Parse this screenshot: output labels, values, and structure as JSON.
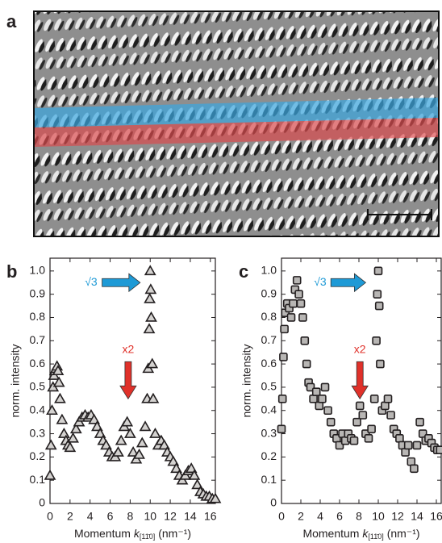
{
  "image_panel": {
    "label": "a"
  },
  "chart_data": [
    {
      "type": "scatter",
      "label": "b",
      "marker": "triangle",
      "color": "#231f20",
      "fill": "#d4d2d0",
      "ylabel": "norm. intensity",
      "xlabel": {
        "text": "Momentum",
        "symbol": "k",
        "subscript": "[11̄0]",
        "unit": "(nm⁻¹)"
      },
      "xlim": [
        0,
        16.5
      ],
      "ylim": [
        0,
        1.055
      ],
      "xticks": [
        0,
        2,
        4,
        6,
        8,
        10,
        12,
        14,
        16
      ],
      "yticks": [
        0,
        0.1,
        0.2,
        0.3,
        0.4,
        0.5,
        0.6,
        0.7,
        0.8,
        0.9,
        {
          "value": 1,
          "label": "1.0"
        }
      ],
      "annotations": [
        {
          "text": "√3",
          "color": "#1e9ad6"
        },
        {
          "text": "x2",
          "color": "#e0312a"
        }
      ],
      "x": [
        0,
        0.1,
        0.2,
        0.3,
        0.4,
        0.5,
        0.6,
        0.7,
        0.8,
        0.9,
        1.0,
        1.2,
        1.4,
        1.6,
        1.8,
        2.0,
        2.3,
        2.6,
        2.9,
        3.2,
        3.5,
        3.8,
        4.1,
        4.4,
        4.7,
        5.0,
        5.3,
        5.6,
        5.9,
        6.2,
        6.5,
        6.8,
        7.1,
        7.4,
        7.7,
        8.0,
        8.3,
        8.6,
        8.9,
        9.2,
        9.5,
        9.7,
        9.8,
        9.9,
        9.95,
        10.0,
        10.05,
        10.1,
        10.2,
        10.3,
        10.5,
        10.8,
        11.1,
        11.4,
        11.7,
        12.0,
        12.3,
        12.6,
        12.9,
        13.2,
        13.5,
        13.8,
        14.1,
        14.4,
        14.7,
        15.0,
        15.3,
        15.6,
        15.9,
        16.2,
        16.5
      ],
      "values": [
        0.12,
        0.25,
        0.4,
        0.5,
        0.55,
        0.57,
        0.58,
        0.59,
        0.57,
        0.52,
        0.45,
        0.36,
        0.3,
        0.27,
        0.25,
        0.24,
        0.28,
        0.32,
        0.35,
        0.37,
        0.38,
        0.37,
        0.38,
        0.36,
        0.33,
        0.3,
        0.27,
        0.25,
        0.22,
        0.2,
        0.2,
        0.22,
        0.27,
        0.33,
        0.35,
        0.3,
        0.22,
        0.19,
        0.21,
        0.26,
        0.33,
        0.45,
        0.58,
        0.75,
        0.88,
        1.0,
        0.92,
        0.8,
        0.6,
        0.45,
        0.3,
        0.25,
        0.27,
        0.25,
        0.22,
        0.2,
        0.18,
        0.15,
        0.12,
        0.1,
        0.12,
        0.14,
        0.15,
        0.12,
        0.08,
        0.05,
        0.04,
        0.03,
        0.03,
        0.02,
        0.02
      ]
    },
    {
      "type": "scatter",
      "label": "c",
      "marker": "square",
      "color": "#231f20",
      "fill": "#b8b6b4",
      "ylabel": "norm. intensity",
      "xlabel": {
        "text": "Momentum",
        "symbol": "k",
        "subscript": "[11̄0]",
        "unit": "(nm⁻¹)"
      },
      "xlim": [
        0,
        16.5
      ],
      "ylim": [
        0,
        1.055
      ],
      "xticks": [
        0,
        2,
        4,
        6,
        8,
        10,
        12,
        14,
        16
      ],
      "yticks": [
        0,
        0.1,
        0.2,
        0.3,
        0.4,
        0.5,
        0.6,
        0.7,
        0.8,
        0.9,
        {
          "value": 1,
          "label": "1.0"
        }
      ],
      "annotations": [
        {
          "text": "√3",
          "color": "#1e9ad6"
        },
        {
          "text": "x2",
          "color": "#e0312a"
        }
      ],
      "x": [
        0,
        0.1,
        0.2,
        0.3,
        0.4,
        0.6,
        0.8,
        1.0,
        1.2,
        1.4,
        1.6,
        1.8,
        2.0,
        2.2,
        2.4,
        2.6,
        2.8,
        3.0,
        3.3,
        3.6,
        3.9,
        4.2,
        4.5,
        4.8,
        5.1,
        5.4,
        5.7,
        6.0,
        6.3,
        6.6,
        6.9,
        7.2,
        7.5,
        7.8,
        8.1,
        8.4,
        8.7,
        9.0,
        9.3,
        9.6,
        9.8,
        9.9,
        10.0,
        10.1,
        10.2,
        10.4,
        10.7,
        11.0,
        11.3,
        11.6,
        11.9,
        12.2,
        12.5,
        12.8,
        13.1,
        13.4,
        13.7,
        14.0,
        14.3,
        14.6,
        14.9,
        15.2,
        15.5,
        15.8,
        16.1,
        16.4
      ],
      "values": [
        0.32,
        0.45,
        0.63,
        0.75,
        0.82,
        0.86,
        0.84,
        0.8,
        0.86,
        0.92,
        0.96,
        0.9,
        0.86,
        0.8,
        0.7,
        0.6,
        0.52,
        0.5,
        0.45,
        0.48,
        0.42,
        0.45,
        0.5,
        0.4,
        0.35,
        0.3,
        0.28,
        0.25,
        0.3,
        0.27,
        0.3,
        0.28,
        0.27,
        0.35,
        0.42,
        0.38,
        0.3,
        0.28,
        0.32,
        0.45,
        0.7,
        0.9,
        1.0,
        0.85,
        0.6,
        0.4,
        0.42,
        0.45,
        0.38,
        0.32,
        0.3,
        0.28,
        0.25,
        0.22,
        0.25,
        0.18,
        0.15,
        0.25,
        0.35,
        0.3,
        0.27,
        0.28,
        0.26,
        0.24,
        0.23,
        0.23
      ]
    }
  ]
}
